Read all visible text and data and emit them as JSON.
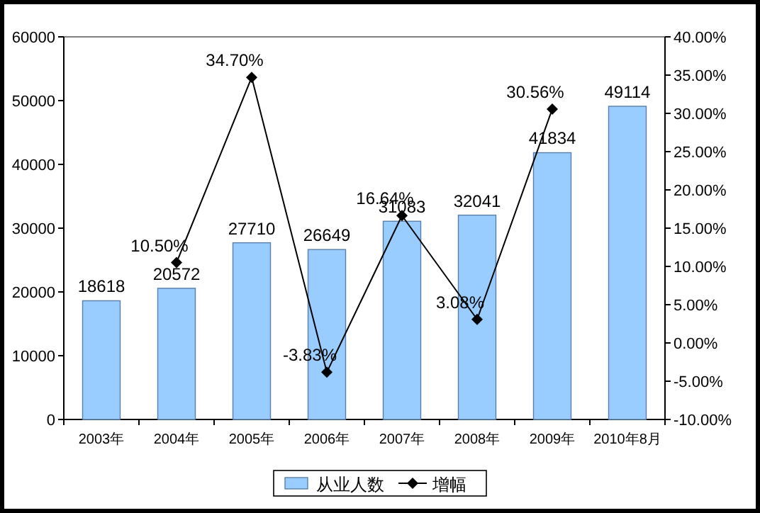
{
  "chart_data": {
    "type": "bar",
    "categories": [
      "2003年",
      "2004年",
      "2005年",
      "2006年",
      "2007年",
      "2008年",
      "2009年",
      "2010年8月"
    ],
    "series": [
      {
        "name": "从业人数",
        "color": "#99ccff",
        "values": [
          18618,
          20572,
          27710,
          26649,
          31083,
          32041,
          41834,
          49114
        ],
        "value_labels": [
          "18618",
          "20572",
          "27710",
          "26649",
          "31083",
          "32041",
          "41834",
          "49114"
        ]
      },
      {
        "name": "增幅",
        "type": "line",
        "axis": "y2",
        "color": "#000000",
        "marker": "diamond",
        "values": [
          null,
          10.5,
          34.7,
          -3.83,
          16.64,
          3.08,
          30.56,
          null
        ],
        "value_labels": [
          null,
          "10.50%",
          "34.70%",
          "-3.83%",
          "16.64%",
          "3.08%",
          "30.56%",
          null
        ]
      }
    ],
    "ylim": [
      0,
      60000
    ],
    "yticks": [
      0,
      10000,
      20000,
      30000,
      40000,
      50000,
      60000
    ],
    "y2lim": [
      -10,
      40
    ],
    "y2ticks": [
      {
        "value": -10,
        "label": "-10.00%"
      },
      {
        "value": -5,
        "label": "-5.00%"
      },
      {
        "value": 0,
        "label": "0.00%"
      },
      {
        "value": 5,
        "label": "5.00%"
      },
      {
        "value": 10,
        "label": "10.00%"
      },
      {
        "value": 15,
        "label": "15.00%"
      },
      {
        "value": 20,
        "label": "20.00%"
      },
      {
        "value": 25,
        "label": "25.00%"
      },
      {
        "value": 30,
        "label": "30.00%"
      },
      {
        "value": 35,
        "label": "35.00%"
      },
      {
        "value": 40,
        "label": "40.00%"
      }
    ],
    "legend": "bottom",
    "grid": false
  }
}
